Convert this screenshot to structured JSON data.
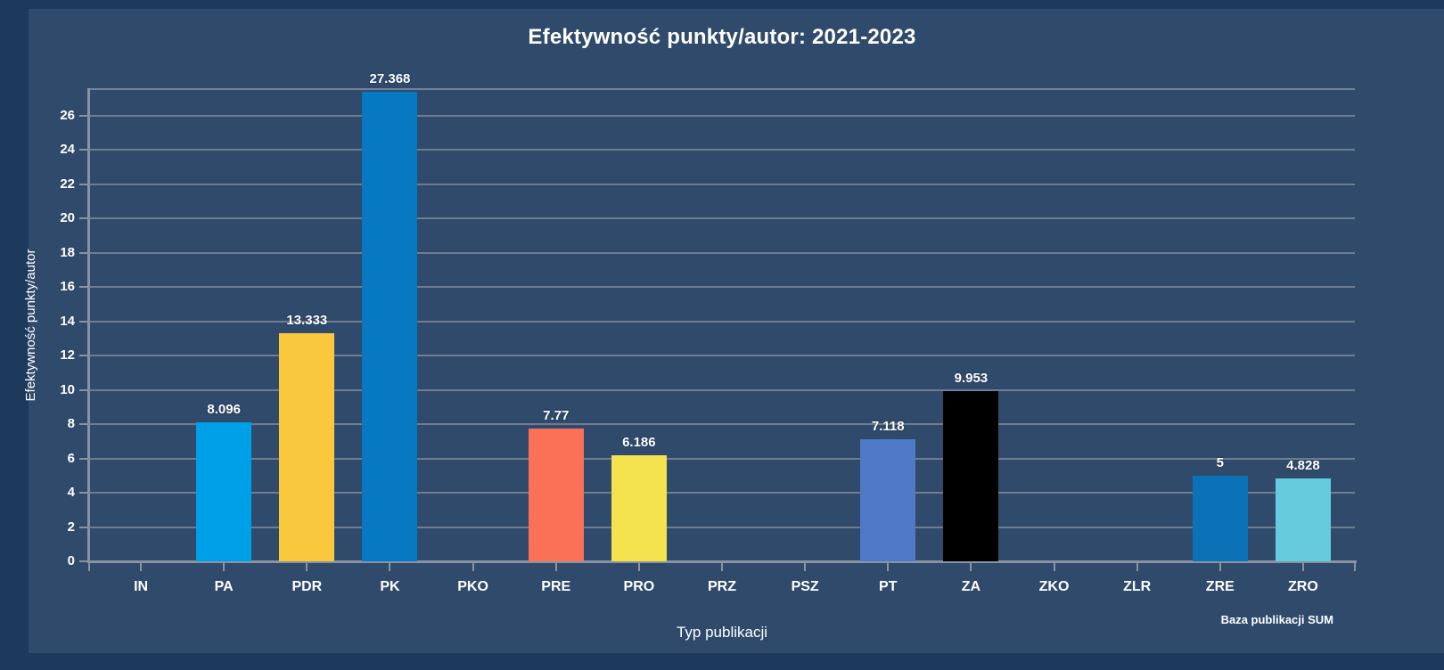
{
  "page": {
    "background_color": "#1d3a5c",
    "canvas_color": "#2f4a6b",
    "footer": "Baza publikacji SUM"
  },
  "chart_data": {
    "type": "bar",
    "title": "Efektywność punkty/autor: 2021-2023",
    "xlabel": "Typ publikacji",
    "ylabel": "Efektywność punkty/autor",
    "categories": [
      "IN",
      "PA",
      "PDR",
      "PK",
      "PKO",
      "PRE",
      "PRO",
      "PRZ",
      "PSZ",
      "PT",
      "ZA",
      "ZKO",
      "ZLR",
      "ZRE",
      "ZRO"
    ],
    "values": [
      0,
      8.096,
      13.333,
      27.368,
      0,
      7.77,
      6.186,
      0,
      0,
      7.118,
      9.953,
      0,
      0,
      5,
      4.828
    ],
    "value_labels": [
      "",
      "8.096",
      "13.333",
      "27.368",
      "",
      "7.77",
      "6.186",
      "",
      "",
      "7.118",
      "9.953",
      "",
      "",
      "5",
      "4.828"
    ],
    "bar_colors": [
      "",
      "#00a0e8",
      "#fac83c",
      "#0778c2",
      "",
      "#fb7158",
      "#f4e24f",
      "",
      "",
      "#4e7ac7",
      "#000000",
      "",
      "",
      "#0c72b8",
      "#66cbdd"
    ],
    "y_ticks": [
      0,
      2,
      4,
      6,
      8,
      10,
      12,
      14,
      16,
      18,
      20,
      22,
      24,
      26
    ],
    "ylim": [
      0,
      27.6
    ],
    "grid": "horizontal-only",
    "legend": null,
    "text_color": "#ffffff",
    "grid_color": "#6f7d90",
    "axis_color": "#8a93a0"
  }
}
